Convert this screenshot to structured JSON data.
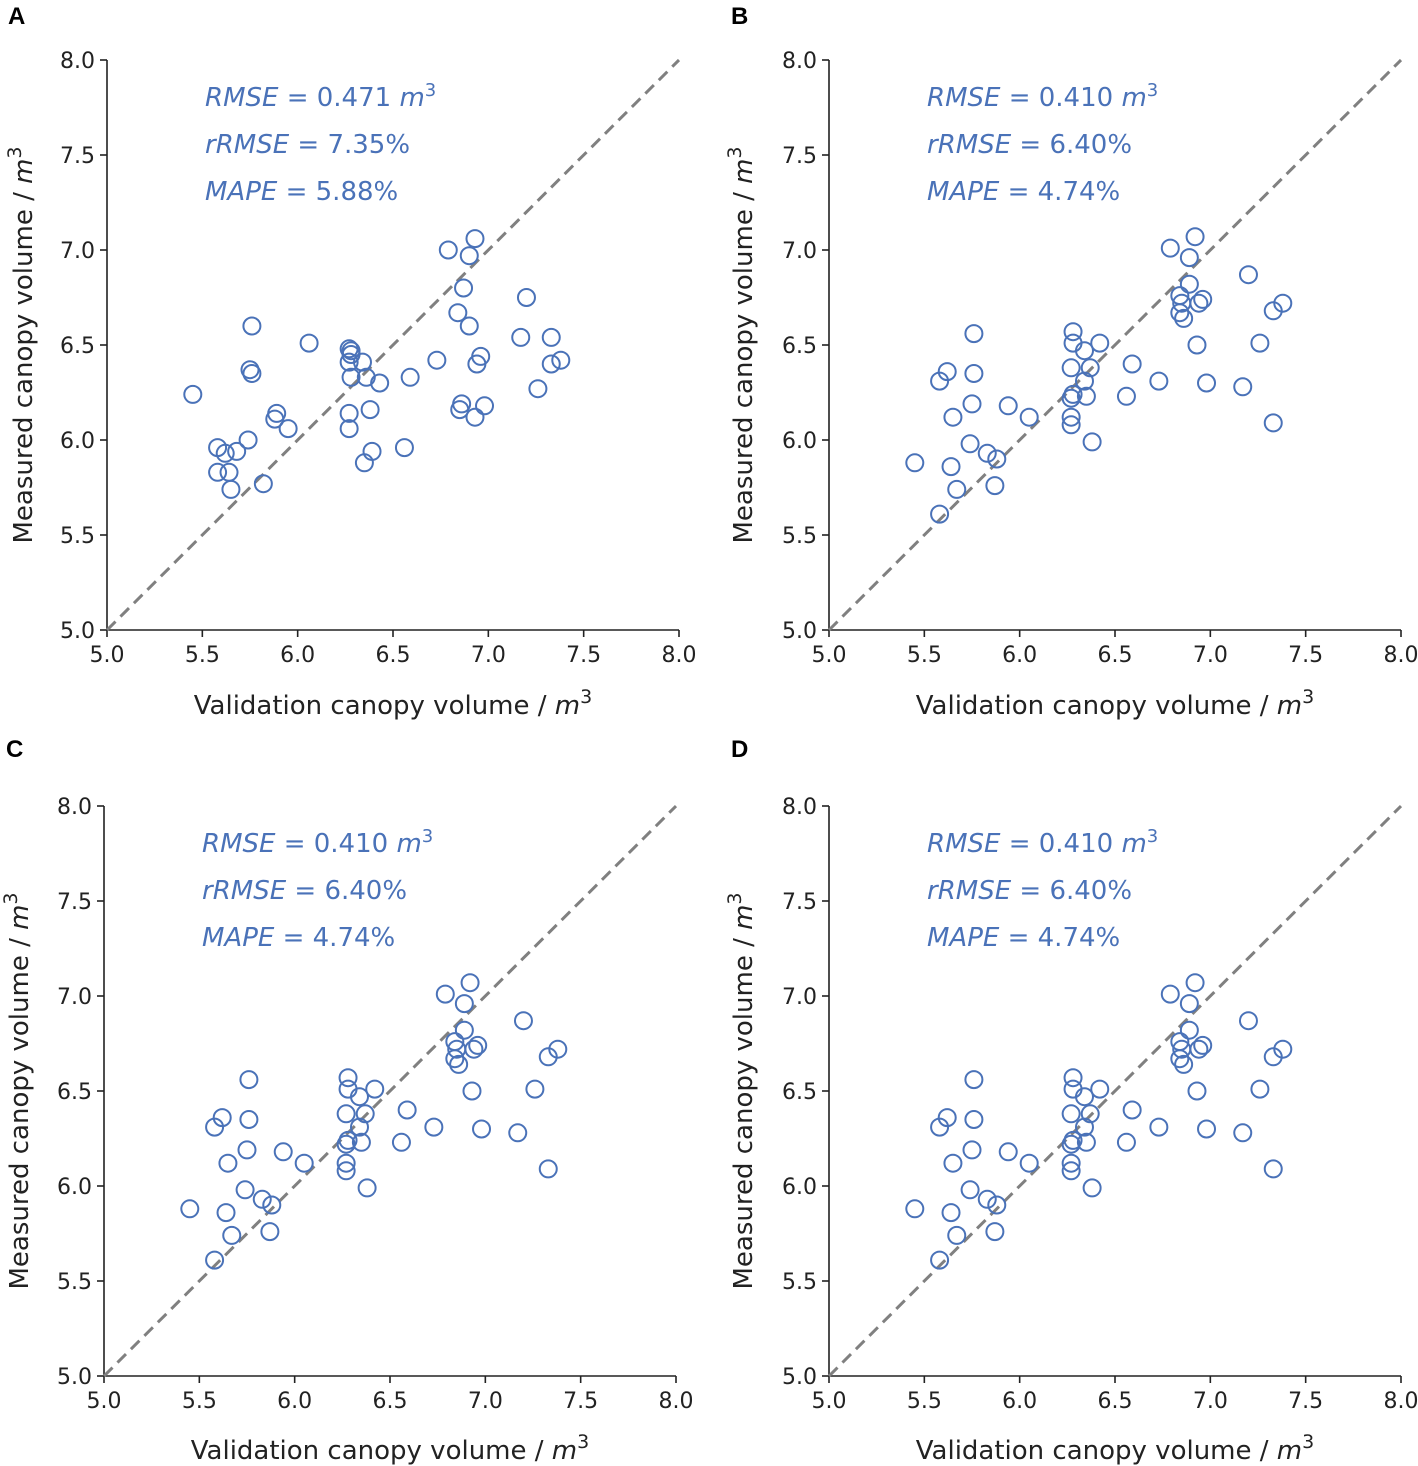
{
  "figure": {
    "colors": {
      "marker": "#4a72b8",
      "text": "#4a72b8",
      "diagonal": "#808080",
      "axis": "#222222"
    }
  },
  "chart_data": [
    {
      "panel": "A",
      "type": "scatter",
      "xlabel": "Validation canopy volume / ",
      "ylabel": "Measured canopy volume / ",
      "unit": "m",
      "unit_exp": "3",
      "xlim": [
        5.0,
        8.0
      ],
      "ylim": [
        5.0,
        8.0
      ],
      "xticks": [
        "5.0",
        "5.5",
        "6.0",
        "6.5",
        "7.0",
        "7.5",
        "8.0"
      ],
      "yticks": [
        "5.0",
        "5.5",
        "6.0",
        "6.5",
        "7.0",
        "7.5",
        "8.0"
      ],
      "diagonal": [
        [
          5.0,
          5.0
        ],
        [
          8.0,
          8.0
        ]
      ],
      "metrics": [
        {
          "name": "RMSE",
          "eq": " = 0.471 ",
          "unit": "m",
          "exp": "3"
        },
        {
          "name": "rRMSE",
          "eq": " = 7.35%",
          "unit": "",
          "exp": ""
        },
        {
          "name": "MAPE",
          "eq": " = 5.88%",
          "unit": "",
          "exp": ""
        }
      ],
      "points": [
        [
          5.45,
          6.24
        ],
        [
          5.58,
          5.96
        ],
        [
          5.58,
          5.83
        ],
        [
          5.62,
          5.93
        ],
        [
          5.64,
          5.83
        ],
        [
          5.65,
          5.74
        ],
        [
          5.68,
          5.94
        ],
        [
          5.74,
          6.0
        ],
        [
          5.75,
          6.37
        ],
        [
          5.76,
          6.35
        ],
        [
          5.76,
          6.6
        ],
        [
          5.82,
          5.77
        ],
        [
          5.88,
          6.11
        ],
        [
          5.89,
          6.14
        ],
        [
          5.95,
          6.06
        ],
        [
          6.06,
          6.51
        ],
        [
          6.27,
          6.48
        ],
        [
          6.28,
          6.47
        ],
        [
          6.28,
          6.45
        ],
        [
          6.27,
          6.41
        ],
        [
          6.28,
          6.33
        ],
        [
          6.27,
          6.14
        ],
        [
          6.27,
          6.06
        ],
        [
          6.34,
          6.41
        ],
        [
          6.36,
          6.33
        ],
        [
          6.35,
          5.88
        ],
        [
          6.38,
          6.16
        ],
        [
          6.39,
          5.94
        ],
        [
          6.43,
          6.3
        ],
        [
          6.56,
          5.96
        ],
        [
          6.59,
          6.33
        ],
        [
          6.73,
          6.42
        ],
        [
          6.79,
          7.0
        ],
        [
          6.84,
          6.67
        ],
        [
          6.85,
          6.16
        ],
        [
          6.86,
          6.19
        ],
        [
          6.87,
          6.8
        ],
        [
          6.9,
          6.97
        ],
        [
          6.9,
          6.6
        ],
        [
          6.93,
          7.06
        ],
        [
          6.93,
          6.12
        ],
        [
          6.94,
          6.4
        ],
        [
          6.96,
          6.44
        ],
        [
          6.98,
          6.18
        ],
        [
          7.17,
          6.54
        ],
        [
          7.2,
          6.75
        ],
        [
          7.26,
          6.27
        ],
        [
          7.33,
          6.54
        ],
        [
          7.33,
          6.4
        ],
        [
          7.38,
          6.42
        ]
      ]
    },
    {
      "panel": "B",
      "type": "scatter",
      "xlabel": "Validation canopy volume / ",
      "ylabel": "Measured canopy volume / ",
      "unit": "m",
      "unit_exp": "3",
      "xlim": [
        5.0,
        8.0
      ],
      "ylim": [
        5.0,
        8.0
      ],
      "xticks": [
        "5.0",
        "5.5",
        "6.0",
        "6.5",
        "7.0",
        "7.5",
        "8.0"
      ],
      "yticks": [
        "5.0",
        "5.5",
        "6.0",
        "6.5",
        "7.0",
        "7.5",
        "8.0"
      ],
      "diagonal": [
        [
          5.0,
          5.0
        ],
        [
          8.0,
          8.0
        ]
      ],
      "metrics": [
        {
          "name": "RMSE",
          "eq": " = 0.410 ",
          "unit": "m",
          "exp": "3"
        },
        {
          "name": "rRMSE",
          "eq": " = 6.40%",
          "unit": "",
          "exp": ""
        },
        {
          "name": "MAPE",
          "eq": " = 4.74%",
          "unit": "",
          "exp": ""
        }
      ],
      "points": [
        [
          5.45,
          5.88
        ],
        [
          5.58,
          5.61
        ],
        [
          5.58,
          6.31
        ],
        [
          5.62,
          6.36
        ],
        [
          5.64,
          5.86
        ],
        [
          5.65,
          6.12
        ],
        [
          5.67,
          5.74
        ],
        [
          5.74,
          5.98
        ],
        [
          5.75,
          6.19
        ],
        [
          5.76,
          6.35
        ],
        [
          5.76,
          6.56
        ],
        [
          5.83,
          5.93
        ],
        [
          5.87,
          5.76
        ],
        [
          5.88,
          5.9
        ],
        [
          5.94,
          6.18
        ],
        [
          6.05,
          6.12
        ],
        [
          6.27,
          6.08
        ],
        [
          6.27,
          6.12
        ],
        [
          6.27,
          6.22
        ],
        [
          6.28,
          6.24
        ],
        [
          6.27,
          6.38
        ],
        [
          6.28,
          6.51
        ],
        [
          6.28,
          6.57
        ],
        [
          6.34,
          6.47
        ],
        [
          6.34,
          6.31
        ],
        [
          6.35,
          6.23
        ],
        [
          6.37,
          6.38
        ],
        [
          6.38,
          5.99
        ],
        [
          6.42,
          6.51
        ],
        [
          6.56,
          6.23
        ],
        [
          6.59,
          6.4
        ],
        [
          6.73,
          6.31
        ],
        [
          6.79,
          7.01
        ],
        [
          6.84,
          6.76
        ],
        [
          6.84,
          6.67
        ],
        [
          6.85,
          6.72
        ],
        [
          6.86,
          6.64
        ],
        [
          6.89,
          6.96
        ],
        [
          6.89,
          6.82
        ],
        [
          6.92,
          7.07
        ],
        [
          6.93,
          6.5
        ],
        [
          6.94,
          6.72
        ],
        [
          6.96,
          6.74
        ],
        [
          6.98,
          6.3
        ],
        [
          7.17,
          6.28
        ],
        [
          7.2,
          6.87
        ],
        [
          7.26,
          6.51
        ],
        [
          7.33,
          6.68
        ],
        [
          7.33,
          6.09
        ],
        [
          7.38,
          6.72
        ]
      ]
    },
    {
      "panel": "C",
      "type": "scatter",
      "xlabel": "Validation canopy volume / ",
      "ylabel": "Measured canopy volume / ",
      "unit": "m",
      "unit_exp": "3",
      "xlim": [
        5.0,
        8.0
      ],
      "ylim": [
        5.0,
        8.0
      ],
      "xticks": [
        "5.0",
        "5.5",
        "6.0",
        "6.5",
        "7.0",
        "7.5",
        "8.0"
      ],
      "yticks": [
        "5.0",
        "5.5",
        "6.0",
        "6.5",
        "7.0",
        "7.5",
        "8.0"
      ],
      "diagonal": [
        [
          5.0,
          5.0
        ],
        [
          8.0,
          8.0
        ]
      ],
      "metrics": [
        {
          "name": "RMSE",
          "eq": " = 0.410 ",
          "unit": "m",
          "exp": "3"
        },
        {
          "name": "rRMSE",
          "eq": " = 6.40%",
          "unit": "",
          "exp": ""
        },
        {
          "name": "MAPE",
          "eq": " = 4.74%",
          "unit": "",
          "exp": ""
        }
      ],
      "points": [
        [
          5.45,
          5.88
        ],
        [
          5.58,
          5.61
        ],
        [
          5.58,
          6.31
        ],
        [
          5.62,
          6.36
        ],
        [
          5.64,
          5.86
        ],
        [
          5.65,
          6.12
        ],
        [
          5.67,
          5.74
        ],
        [
          5.74,
          5.98
        ],
        [
          5.75,
          6.19
        ],
        [
          5.76,
          6.35
        ],
        [
          5.76,
          6.56
        ],
        [
          5.83,
          5.93
        ],
        [
          5.87,
          5.76
        ],
        [
          5.88,
          5.9
        ],
        [
          5.94,
          6.18
        ],
        [
          6.05,
          6.12
        ],
        [
          6.27,
          6.08
        ],
        [
          6.27,
          6.12
        ],
        [
          6.27,
          6.22
        ],
        [
          6.28,
          6.24
        ],
        [
          6.27,
          6.38
        ],
        [
          6.28,
          6.51
        ],
        [
          6.28,
          6.57
        ],
        [
          6.34,
          6.47
        ],
        [
          6.34,
          6.31
        ],
        [
          6.35,
          6.23
        ],
        [
          6.37,
          6.38
        ],
        [
          6.38,
          5.99
        ],
        [
          6.42,
          6.51
        ],
        [
          6.56,
          6.23
        ],
        [
          6.59,
          6.4
        ],
        [
          6.73,
          6.31
        ],
        [
          6.79,
          7.01
        ],
        [
          6.84,
          6.76
        ],
        [
          6.84,
          6.67
        ],
        [
          6.85,
          6.72
        ],
        [
          6.86,
          6.64
        ],
        [
          6.89,
          6.96
        ],
        [
          6.89,
          6.82
        ],
        [
          6.92,
          7.07
        ],
        [
          6.93,
          6.5
        ],
        [
          6.94,
          6.72
        ],
        [
          6.96,
          6.74
        ],
        [
          6.98,
          6.3
        ],
        [
          7.17,
          6.28
        ],
        [
          7.2,
          6.87
        ],
        [
          7.26,
          6.51
        ],
        [
          7.33,
          6.68
        ],
        [
          7.33,
          6.09
        ],
        [
          7.38,
          6.72
        ]
      ]
    },
    {
      "panel": "D",
      "type": "scatter",
      "xlabel": "Validation canopy volume / ",
      "ylabel": "Measured canopy volume / ",
      "unit": "m",
      "unit_exp": "3",
      "xlim": [
        5.0,
        8.0
      ],
      "ylim": [
        5.0,
        8.0
      ],
      "xticks": [
        "5.0",
        "5.5",
        "6.0",
        "6.5",
        "7.0",
        "7.5",
        "8.0"
      ],
      "yticks": [
        "5.0",
        "5.5",
        "6.0",
        "6.5",
        "7.0",
        "7.5",
        "8.0"
      ],
      "diagonal": [
        [
          5.0,
          5.0
        ],
        [
          8.0,
          8.0
        ]
      ],
      "metrics": [
        {
          "name": "RMSE",
          "eq": " = 0.410 ",
          "unit": "m",
          "exp": "3"
        },
        {
          "name": "rRMSE",
          "eq": " = 6.40%",
          "unit": "",
          "exp": ""
        },
        {
          "name": "MAPE",
          "eq": " = 4.74%",
          "unit": "",
          "exp": ""
        }
      ],
      "points": [
        [
          5.45,
          5.88
        ],
        [
          5.58,
          5.61
        ],
        [
          5.58,
          6.31
        ],
        [
          5.62,
          6.36
        ],
        [
          5.64,
          5.86
        ],
        [
          5.65,
          6.12
        ],
        [
          5.67,
          5.74
        ],
        [
          5.74,
          5.98
        ],
        [
          5.75,
          6.19
        ],
        [
          5.76,
          6.35
        ],
        [
          5.76,
          6.56
        ],
        [
          5.83,
          5.93
        ],
        [
          5.87,
          5.76
        ],
        [
          5.88,
          5.9
        ],
        [
          5.94,
          6.18
        ],
        [
          6.05,
          6.12
        ],
        [
          6.27,
          6.08
        ],
        [
          6.27,
          6.12
        ],
        [
          6.27,
          6.22
        ],
        [
          6.28,
          6.24
        ],
        [
          6.27,
          6.38
        ],
        [
          6.28,
          6.51
        ],
        [
          6.28,
          6.57
        ],
        [
          6.34,
          6.47
        ],
        [
          6.34,
          6.31
        ],
        [
          6.35,
          6.23
        ],
        [
          6.37,
          6.38
        ],
        [
          6.38,
          5.99
        ],
        [
          6.42,
          6.51
        ],
        [
          6.56,
          6.23
        ],
        [
          6.59,
          6.4
        ],
        [
          6.73,
          6.31
        ],
        [
          6.79,
          7.01
        ],
        [
          6.84,
          6.76
        ],
        [
          6.84,
          6.67
        ],
        [
          6.85,
          6.72
        ],
        [
          6.86,
          6.64
        ],
        [
          6.89,
          6.96
        ],
        [
          6.89,
          6.82
        ],
        [
          6.92,
          7.07
        ],
        [
          6.93,
          6.5
        ],
        [
          6.94,
          6.72
        ],
        [
          6.96,
          6.74
        ],
        [
          6.98,
          6.3
        ],
        [
          7.17,
          6.28
        ],
        [
          7.2,
          6.87
        ],
        [
          7.26,
          6.51
        ],
        [
          7.33,
          6.68
        ],
        [
          7.33,
          6.09
        ],
        [
          7.38,
          6.72
        ]
      ]
    }
  ]
}
